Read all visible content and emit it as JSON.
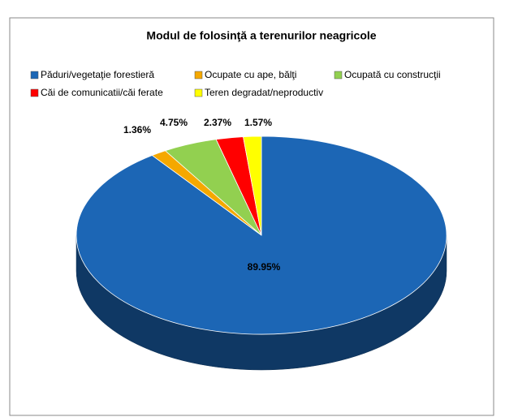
{
  "chart_data": {
    "type": "pie",
    "title": "Modul de folosinţă a terenurilor neagricole",
    "categories": [
      "Păduri/vegetaţie forestieră",
      "Ocupate cu ape, bălţi",
      "Ocupată cu construcţii",
      "Căi de comunicatii/căi ferate",
      "Teren degradat/neproductiv"
    ],
    "values": [
      89.95,
      1.36,
      4.75,
      2.37,
      1.57
    ],
    "value_labels": [
      "89.95%",
      "1.36%",
      "4.75%",
      "2.37%",
      "1.57%"
    ],
    "colors": [
      "#1c66b5",
      "#f5a800",
      "#92d050",
      "#ff0000",
      "#ffff00"
    ],
    "legend": "top"
  }
}
